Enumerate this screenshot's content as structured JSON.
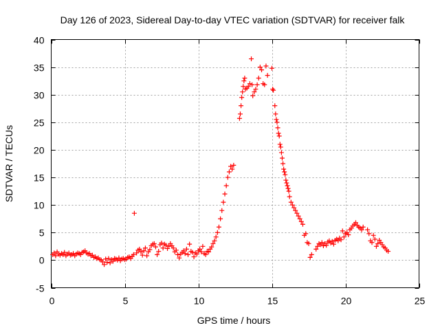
{
  "chart_data": {
    "type": "scatter",
    "title": "Day 126 of 2023, Sidereal Day-to-day VTEC variation (SDTVAR) for receiver falk",
    "xlabel": "GPS time / hours",
    "ylabel": "SDTVAR / TECUs",
    "xlim": [
      0,
      25
    ],
    "ylim": [
      -5,
      40
    ],
    "x_ticks": [
      0,
      5,
      10,
      15,
      20,
      25
    ],
    "y_ticks": [
      -5,
      0,
      5,
      10,
      15,
      20,
      25,
      30,
      35,
      40
    ],
    "x_tick_labels": [
      "0",
      "5",
      "10",
      "15",
      "20",
      "25"
    ],
    "y_tick_labels": [
      "-5",
      "0",
      "5",
      "10",
      "15",
      "20",
      "25",
      "30",
      "35",
      "40"
    ],
    "grid": true,
    "marker": "+",
    "color": "#ff0000",
    "series": [
      {
        "name": "SDTVAR",
        "x": [
          0.1,
          0.2,
          0.3,
          0.4,
          0.5,
          0.6,
          0.7,
          0.8,
          0.9,
          1.0,
          1.1,
          1.2,
          1.3,
          1.4,
          1.5,
          1.6,
          1.7,
          1.8,
          1.9,
          2.0,
          2.1,
          2.2,
          2.3,
          2.4,
          2.5,
          2.6,
          2.7,
          2.8,
          2.9,
          3.0,
          3.1,
          3.2,
          3.3,
          3.4,
          3.5,
          3.6,
          3.7,
          3.8,
          3.9,
          4.0,
          4.1,
          4.2,
          4.3,
          4.4,
          4.5,
          4.6,
          4.7,
          4.8,
          4.9,
          5.0,
          5.1,
          5.2,
          5.3,
          5.4,
          5.5,
          5.6,
          5.65,
          5.8,
          5.9,
          6.0,
          6.1,
          6.2,
          6.3,
          6.4,
          6.5,
          6.6,
          6.7,
          6.8,
          6.9,
          7.0,
          7.1,
          7.2,
          7.3,
          7.4,
          7.5,
          7.6,
          7.7,
          7.8,
          7.9,
          8.0,
          8.1,
          8.2,
          8.3,
          8.4,
          8.5,
          8.6,
          8.7,
          8.8,
          8.9,
          9.0,
          9.1,
          9.2,
          9.3,
          9.4,
          9.5,
          9.6,
          9.7,
          9.8,
          9.9,
          10.0,
          10.1,
          10.2,
          10.3,
          10.4,
          10.5,
          10.6,
          10.7,
          10.8,
          10.9,
          11.0,
          11.1,
          11.2,
          11.3,
          11.4,
          11.5,
          11.6,
          11.7,
          11.8,
          11.9,
          12.0,
          12.1,
          12.2,
          12.3,
          12.4,
          12.8,
          12.85,
          12.9,
          12.95,
          13.0,
          13.05,
          13.1,
          13.15,
          13.2,
          13.3,
          13.4,
          13.5,
          13.6,
          13.65,
          13.7,
          13.8,
          13.9,
          14.0,
          14.1,
          14.2,
          14.3,
          14.4,
          14.5,
          14.6,
          14.7,
          15.0,
          15.05,
          15.1,
          15.2,
          15.25,
          15.3,
          15.35,
          15.4,
          15.45,
          15.5,
          15.55,
          15.6,
          15.65,
          15.7,
          15.75,
          15.8,
          15.85,
          15.9,
          15.95,
          16.0,
          16.05,
          16.1,
          16.15,
          16.2,
          16.3,
          16.4,
          16.5,
          16.6,
          16.7,
          16.8,
          16.9,
          17.0,
          17.1,
          17.2,
          17.3,
          17.4,
          17.5,
          17.6,
          17.7,
          18.0,
          18.1,
          18.2,
          18.3,
          18.4,
          18.5,
          18.6,
          18.7,
          18.8,
          18.9,
          19.0,
          19.1,
          19.2,
          19.3,
          19.4,
          19.5,
          19.6,
          19.7,
          19.8,
          19.9,
          20.0,
          20.1,
          20.2,
          20.3,
          20.4,
          20.5,
          20.6,
          20.7,
          20.8,
          20.9,
          21.0,
          21.1,
          21.2,
          21.5,
          21.6,
          21.7,
          21.8,
          21.9,
          22.0,
          22.1,
          22.2,
          22.3,
          22.4,
          22.5,
          22.6,
          22.7,
          22.8,
          22.9
        ],
        "y": [
          1.0,
          1.3,
          0.8,
          1.5,
          1.1,
          0.9,
          1.2,
          1.0,
          1.4,
          0.8,
          1.1,
          1.3,
          0.9,
          1.0,
          1.2,
          0.8,
          1.1,
          1.3,
          1.2,
          1.0,
          1.4,
          1.5,
          1.7,
          1.3,
          1.1,
          1.2,
          0.8,
          0.9,
          0.5,
          0.6,
          0.3,
          0.4,
          0.1,
          0.0,
          -0.3,
          -0.8,
          0.2,
          -0.4,
          0.3,
          -0.5,
          0.1,
          -0.2,
          0.3,
          0.2,
          0.0,
          0.4,
          -0.1,
          0.2,
          0.3,
          0.1,
          0.2,
          0.5,
          0.6,
          0.3,
          0.7,
          1.0,
          8.5,
          1.3,
          1.8,
          2.0,
          1.5,
          0.9,
          1.7,
          2.2,
          0.8,
          1.5,
          1.9,
          2.6,
          2.9,
          3.0,
          2.4,
          1.0,
          1.6,
          2.8,
          3.1,
          2.2,
          2.9,
          2.7,
          2.1,
          2.5,
          3.0,
          2.6,
          2.2,
          1.5,
          1.8,
          1.0,
          0.4,
          1.1,
          1.4,
          1.7,
          1.2,
          2.0,
          1.0,
          2.9,
          1.6,
          1.4,
          0.6,
          1.3,
          1.1,
          1.7,
          2.0,
          1.5,
          2.5,
          1.2,
          1.0,
          1.6,
          1.5,
          2.0,
          2.4,
          3.0,
          3.5,
          4.2,
          5.0,
          6.0,
          7.5,
          9.0,
          10.5,
          12.0,
          13.5,
          15.0,
          16.0,
          17.0,
          16.5,
          17.2,
          25.7,
          26.5,
          28.0,
          29.5,
          30.5,
          31.5,
          32.5,
          33.0,
          31.0,
          31.2,
          31.5,
          32.0,
          36.5,
          31.8,
          29.8,
          30.5,
          31.0,
          31.8,
          33.0,
          35.0,
          34.5,
          32.0,
          31.8,
          35.2,
          33.5,
          34.8,
          31.0,
          30.8,
          28.0,
          26.5,
          25.5,
          25.0,
          24.0,
          23.0,
          22.5,
          21.0,
          20.5,
          19.5,
          18.5,
          17.5,
          16.5,
          16.0,
          15.5,
          14.5,
          14.0,
          13.5,
          13.0,
          12.5,
          11.5,
          10.5,
          10.0,
          9.5,
          9.0,
          8.5,
          8.0,
          7.5,
          7.0,
          6.5,
          4.5,
          4.8,
          3.2,
          3.0,
          0.5,
          1.0,
          2.0,
          2.5,
          3.0,
          2.8,
          3.2,
          2.6,
          3.0,
          2.7,
          3.3,
          3.5,
          3.1,
          3.4,
          2.9,
          3.6,
          3.8,
          3.5,
          4.0,
          3.7,
          5.3,
          4.2,
          4.8,
          5.0,
          4.6,
          5.5,
          5.8,
          6.2,
          6.5,
          6.8,
          6.3,
          6.0,
          5.8,
          5.5,
          6.0,
          5.5,
          4.8,
          3.5,
          3.2,
          4.5,
          3.8,
          2.5,
          3.0,
          3.6,
          3.2,
          2.8,
          2.4,
          2.2,
          1.8,
          1.6
        ]
      }
    ]
  }
}
